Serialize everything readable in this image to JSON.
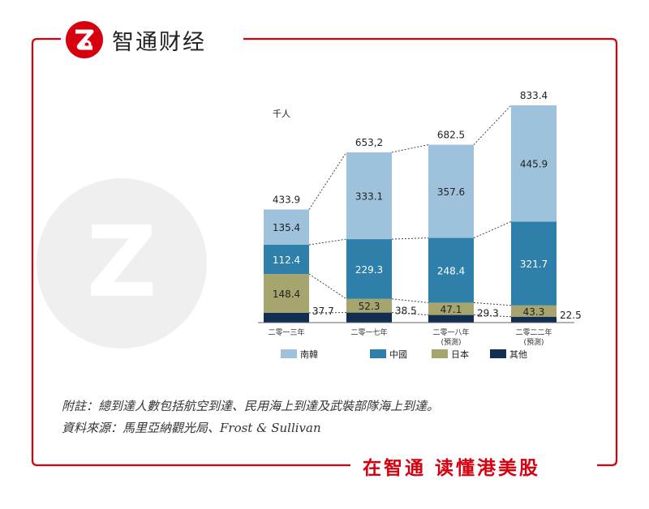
{
  "brand": {
    "name": "智通财经",
    "slogan": "在智通 读懂港美股"
  },
  "colors": {
    "accent": "#d7000f",
    "korea": "#9ec2db",
    "china": "#2e7fa9",
    "japan": "#a7a56e",
    "other": "#102f52"
  },
  "chart_data": {
    "type": "stacked-bar",
    "unit_label": "千人",
    "categories": [
      "二零一三年",
      "二零一七年",
      "二零一八年",
      "二零二二年"
    ],
    "category_notes": [
      "",
      "",
      "(預測)",
      "(預測)"
    ],
    "series": [
      {
        "name": "其他",
        "values": [
          37.7,
          38.5,
          29.3,
          22.5
        ],
        "labels": [
          "37.7",
          "38.5",
          "29.3",
          "22.5"
        ],
        "color": "#102f52"
      },
      {
        "name": "日本",
        "values": [
          148.4,
          52.3,
          47.1,
          43.3
        ],
        "labels": [
          "148.4",
          "52.3",
          "47.1",
          "43.3"
        ],
        "color": "#a7a56e"
      },
      {
        "name": "中國",
        "values": [
          112.4,
          229.3,
          248.4,
          321.7
        ],
        "labels": [
          "112.4",
          "229.3",
          "248.4",
          "321.7"
        ],
        "color": "#2e7fa9"
      },
      {
        "name": "南韓",
        "values": [
          135.4,
          333.1,
          357.6,
          445.9
        ],
        "labels": [
          "135.4",
          "333.1",
          "357.6",
          "445.9"
        ],
        "color": "#9ec2db"
      }
    ],
    "totals": [
      433.9,
      653.2,
      682.5,
      833.4
    ],
    "total_labels": [
      "433.9",
      "653,2",
      "682.5",
      "833.4"
    ],
    "legend": [
      "南韓",
      "中國",
      "日本",
      "其他"
    ],
    "ylim": [
      0,
      833.4
    ]
  },
  "notes": {
    "footnote": "附註：總到達人數包括航空到達、民用海上到達及武裝部隊海上到達。",
    "source": "資料來源：馬里亞納觀光局、Frost & Sullivan"
  }
}
